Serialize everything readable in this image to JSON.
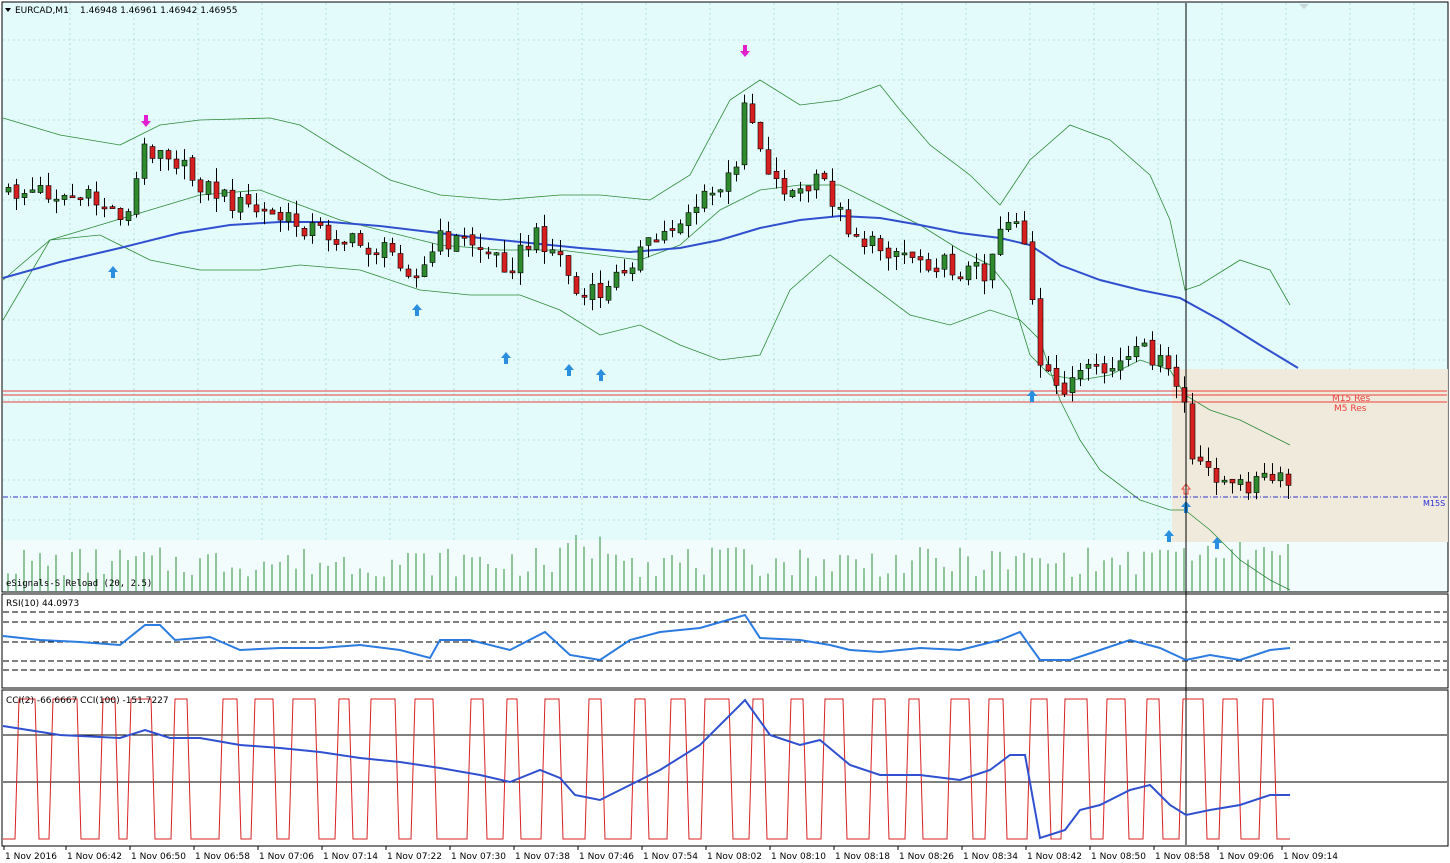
{
  "main_panel": {
    "header_symbol": "EURCAD,M1",
    "header_prices": "1.46948 1.46961 1.46942 1.46955",
    "indicator_label": "eSignals-S Reload (20, 2.5)",
    "level_m15_res": "M15 Res",
    "level_m5_res": "M5 Res",
    "level_right_tag": "M15S",
    "colors": {
      "background": "#e3fbfb",
      "volume_background": "#f2fcfc",
      "bull_candle": "#2d8a2d",
      "bear_candle": "#d81f1f",
      "bollinger": "#2e8b3a",
      "moving_average": "#3050d0",
      "resistance": "#e8413c",
      "support_line": "#3333cc",
      "arrow_up": "#2b8fe0",
      "arrow_down": "#e020d0",
      "zone_fill": "#efe8d8"
    }
  },
  "rsi_panel": {
    "label": "RSI(10) 44.0973",
    "color": "#2b7be0"
  },
  "cci_panel": {
    "label": "CCI(2) -66.6667  CCI(100) -151.7227",
    "fast_color": "#d82020",
    "slow_color": "#3050d0"
  },
  "time_axis": {
    "labels": [
      "1 Nov 2016",
      "1 Nov 06:42",
      "1 Nov 06:50",
      "1 Nov 06:58",
      "1 Nov 07:06",
      "1 Nov 07:14",
      "1 Nov 07:22",
      "1 Nov 07:30",
      "1 Nov 07:38",
      "1 Nov 07:46",
      "1 Nov 07:54",
      "1 Nov 08:02",
      "1 Nov 08:10",
      "1 Nov 08:18",
      "1 Nov 08:26",
      "1 Nov 08:34",
      "1 Nov 08:42",
      "1 Nov 08:50",
      "1 Nov 08:58",
      "1 Nov 09:06",
      "1 Nov 09:14"
    ]
  }
}
